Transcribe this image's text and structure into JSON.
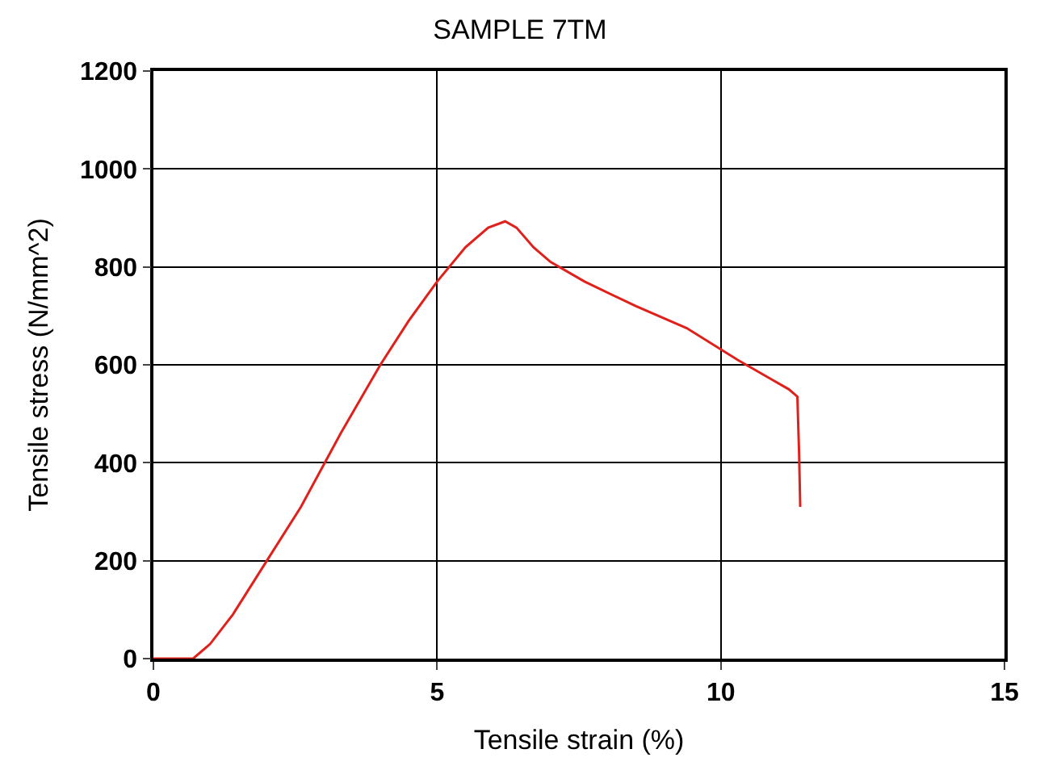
{
  "chart_data": {
    "type": "line",
    "title": "SAMPLE 7TM",
    "xlabel": "Tensile strain (%)",
    "ylabel": "Tensile stress (N/mm^2)",
    "x": [
      0,
      0.3,
      0.7,
      1.0,
      1.4,
      2.0,
      2.6,
      3.3,
      4.0,
      4.5,
      5.0,
      5.5,
      5.9,
      6.2,
      6.4,
      6.7,
      7.0,
      7.6,
      8.5,
      9.4,
      10.3,
      10.9,
      11.2,
      11.35,
      11.38,
      11.4
    ],
    "series": [
      {
        "color": "#e0201b",
        "values": [
          0,
          0,
          0,
          30,
          90,
          200,
          310,
          460,
          600,
          690,
          770,
          840,
          880,
          893,
          880,
          840,
          810,
          770,
          720,
          675,
          610,
          570,
          550,
          535,
          420,
          310
        ]
      }
    ],
    "xlim": [
      0,
      15
    ],
    "ylim": [
      0,
      1200
    ],
    "xticks": [
      0,
      5,
      10,
      15
    ],
    "yticks": [
      0,
      200,
      400,
      600,
      800,
      1000,
      1200
    ],
    "grid": true,
    "legend": false,
    "marker": "none",
    "line_style": "solid"
  }
}
